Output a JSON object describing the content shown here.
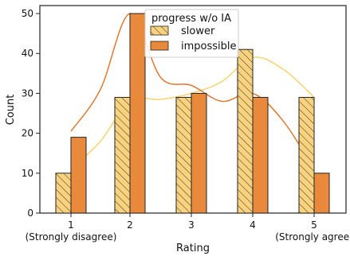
{
  "chart_data": {
    "type": "bar",
    "xlabel": "Rating",
    "ylabel": "Count",
    "ylim": [
      0,
      52
    ],
    "yticks": [
      0,
      10,
      20,
      30,
      40,
      50
    ],
    "categories": [
      "1",
      "2",
      "3",
      "4",
      "5"
    ],
    "category_sublabels": [
      "(Strongly disagree)",
      "",
      "",
      "",
      "(Strongly agree)"
    ],
    "legend": {
      "title": "progress w/o IA",
      "position": "top-center"
    },
    "grid": false,
    "series": [
      {
        "name": "slower",
        "values": [
          10,
          29,
          29,
          41,
          29
        ],
        "color": "#f9d27e",
        "hatch": true,
        "curve_color": "#f7d26e"
      },
      {
        "name": "impossible",
        "values": [
          19,
          50,
          30,
          29,
          10
        ],
        "color": "#e8893c",
        "hatch": false,
        "curve_color": "#e07830"
      }
    ],
    "density_curves": {
      "slower": {
        "x": [
          1,
          1.5,
          2,
          2.5,
          3,
          3.5,
          4,
          4.5,
          5
        ],
        "y": [
          11,
          18,
          28,
          28.5,
          30,
          33,
          39,
          36,
          29
        ]
      },
      "impossible": {
        "x": [
          1,
          1.5,
          2,
          2.5,
          3,
          3.5,
          4,
          4.5,
          5
        ],
        "y": [
          20.5,
          31,
          50,
          34,
          32,
          28,
          30,
          23,
          11
        ]
      }
    }
  }
}
